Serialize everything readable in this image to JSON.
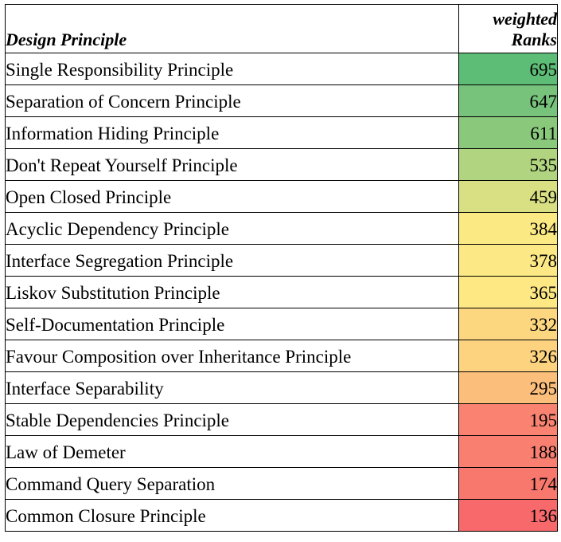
{
  "table": {
    "header": {
      "principle": "Design Principle",
      "rank_line1": "weighted",
      "rank_line2": "Ranks"
    },
    "rows": [
      {
        "principle": "Single Responsibility Principle",
        "rank": "695",
        "color": "#5dbc75"
      },
      {
        "principle": "Separation of Concern Principle",
        "rank": "647",
        "color": "#77c37b"
      },
      {
        "principle": "Information Hiding Principle",
        "rank": "611",
        "color": "#8ac87c"
      },
      {
        "principle": "Don't Repeat Yourself Principle",
        "rank": "535",
        "color": "#b0d47f"
      },
      {
        "principle": "Open Closed Principle",
        "rank": "459",
        "color": "#d8e083"
      },
      {
        "principle": "Acyclic Dependency Principle",
        "rank": "384",
        "color": "#fbe984"
      },
      {
        "principle": "Interface Segregation Principle",
        "rank": "378",
        "color": "#fce985"
      },
      {
        "principle": "Liskov Substitution Principle",
        "rank": "365",
        "color": "#fee884"
      },
      {
        "principle": "Self-Documentation Principle",
        "rank": "332",
        "color": "#fdd680"
      },
      {
        "principle": "Favour Composition over Inheritance Principle",
        "rank": "326",
        "color": "#fdd37f"
      },
      {
        "principle": "Interface Separability",
        "rank": "295",
        "color": "#fcbf7b"
      },
      {
        "principle": "Stable Dependencies Principle",
        "rank": "195",
        "color": "#f98370"
      },
      {
        "principle": "Law of Demeter",
        "rank": "188",
        "color": "#f98070"
      },
      {
        "principle": "Command Query Separation",
        "rank": "174",
        "color": "#f8786e"
      },
      {
        "principle": "Common Closure Principle",
        "rank": "136",
        "color": "#f8696b"
      }
    ]
  }
}
